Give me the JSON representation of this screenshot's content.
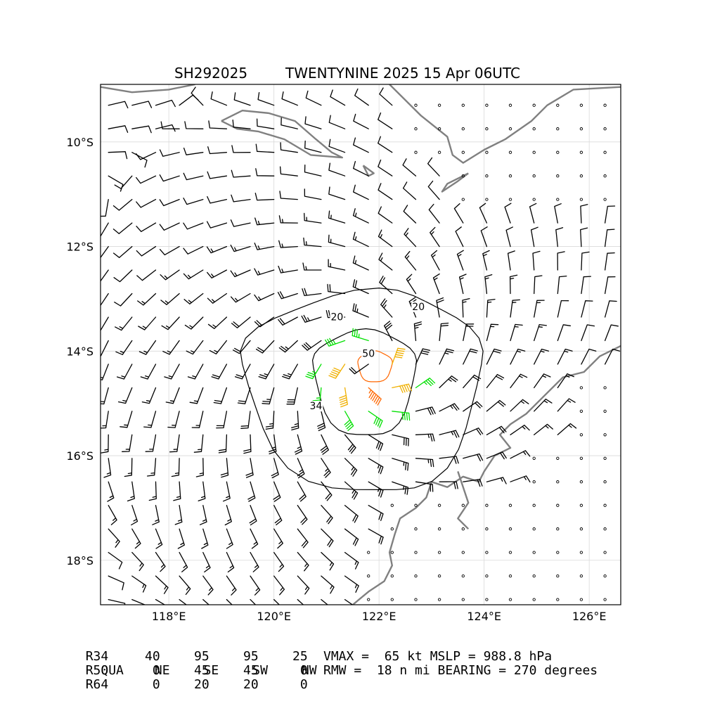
{
  "header": {
    "storm_id": "SH292025",
    "title": "TWENTYNINE 2025 15 Apr 06UTC"
  },
  "radii_table": {
    "headers": [
      "QUA",
      "NE",
      "SE",
      "SW",
      "NW"
    ],
    "rows": [
      {
        "label": "R34",
        "values": [
          "40",
          "95",
          "95",
          "25"
        ]
      },
      {
        "label": "R50",
        "values": [
          "0",
          "45",
          "45",
          "0"
        ]
      },
      {
        "label": "R64",
        "values": [
          "0",
          "20",
          "20",
          "0"
        ]
      }
    ]
  },
  "summary": {
    "line1": "VMAX =  65 kt MSLP = 988.8 hPa",
    "line2": "RMW =  18 n mi BEARING = 270 degrees"
  },
  "colors": {
    "calm_barb": "#000000",
    "gale_barb": "#00e000",
    "storm_barb": "#f0b000",
    "hurricane_barb": "#ff6600",
    "contour": "#000000",
    "coastline": "#808080",
    "grid": "#d9d9d9"
  },
  "chart_data": {
    "type": "wind_barb_map",
    "center": {
      "lon": 121.9,
      "lat": -14.3
    },
    "xlim": [
      116.7,
      126.6
    ],
    "ylim": [
      -18.85,
      -8.9
    ],
    "x_ticks": [
      118,
      120,
      122,
      124,
      126
    ],
    "x_tick_labels": [
      "118°E",
      "120°E",
      "122°E",
      "124°E",
      "126°E"
    ],
    "y_ticks": [
      -10,
      -12,
      -14,
      -16,
      -18
    ],
    "y_tick_labels": [
      "10°S",
      "12°S",
      "14°S",
      "16°S",
      "18°S"
    ],
    "grid": true,
    "barb_units": "kt",
    "contour_levels": [
      20,
      34,
      50
    ],
    "contour_labels": [
      {
        "text": "20",
        "lon": 121.2,
        "lat": -13.4
      },
      {
        "text": "20",
        "lon": 122.75,
        "lat": -13.2
      },
      {
        "text": "50",
        "lon": 121.8,
        "lat": -14.1
      },
      {
        "text": "34",
        "lon": 120.8,
        "lat": -15.1
      }
    ]
  }
}
